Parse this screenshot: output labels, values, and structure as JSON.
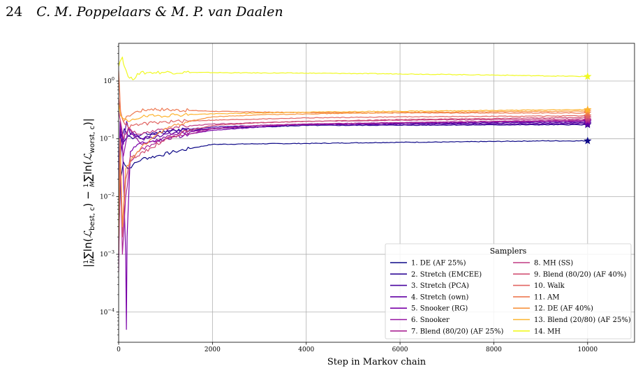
{
  "header": {
    "page_number": "24",
    "authors": "C. M. Poppelaars & M. P. van Daalen"
  },
  "chart_data": {
    "type": "line",
    "xlabel": "Step in Markov chain",
    "ylabel": "|1/N ∑ln(ℒ_best,c) − 1/M ∑ln(ℒ_worst,c)|",
    "ylabel_parts": {
      "bar": "|",
      "frac1_num": "1",
      "frac1_den": "N",
      "sum1": "∑ln(",
      "L1": "ℒ",
      "sub1": "best, c",
      "mid": ") − ",
      "frac2_num": "1",
      "frac2_den": "M",
      "sum2": "∑ln(",
      "L2": "ℒ",
      "sub2": "worst, c",
      "end": ")|"
    },
    "xlim": [
      0,
      11000
    ],
    "ylim": [
      3e-05,
      4.5
    ],
    "yscale": "log",
    "grid": true,
    "x_ticks": [
      0,
      2000,
      4000,
      6000,
      8000,
      10000
    ],
    "x_tick_labels": [
      "0",
      "2000",
      "4000",
      "6000",
      "8000",
      "10000"
    ],
    "y_ticks": [
      0.0001,
      0.001,
      0.01,
      0.1,
      1
    ],
    "y_tick_labels": [
      {
        "base": "10",
        "exp": "−4"
      },
      {
        "base": "10",
        "exp": "−3"
      },
      {
        "base": "10",
        "exp": "−2"
      },
      {
        "base": "10",
        "exp": "−1"
      },
      {
        "base": "10",
        "exp": "0"
      }
    ],
    "marker": "star",
    "legend": {
      "title": "Samplers",
      "position": "lower-right",
      "columns": 2
    },
    "series": [
      {
        "name": "1. DE (AF 25%)",
        "color": "#0d0887",
        "final": 0.092,
        "x": [
          0,
          40,
          100,
          200,
          300,
          500,
          800,
          1200,
          1600,
          2000,
          3000,
          4000,
          5000,
          6000,
          7000,
          8000,
          9000,
          10000
        ],
        "y": [
          0.002,
          0.02,
          0.04,
          0.03,
          0.035,
          0.045,
          0.05,
          0.06,
          0.07,
          0.08,
          0.082,
          0.083,
          0.085,
          0.087,
          0.088,
          0.09,
          0.092,
          0.092
        ]
      },
      {
        "name": "2. Stretch (EMCEE)",
        "color": "#2b0594",
        "final": 0.175,
        "x": [
          0,
          50,
          120,
          180,
          300,
          500,
          800,
          1200,
          2000,
          3000,
          4000,
          6000,
          8000,
          10000
        ],
        "y": [
          0.001,
          0.08,
          0.15,
          0.12,
          0.1,
          0.12,
          0.13,
          0.14,
          0.15,
          0.16,
          0.17,
          0.172,
          0.174,
          0.175
        ]
      },
      {
        "name": "3. Stretch (PCA)",
        "color": "#48039f",
        "final": 0.19,
        "x": [
          0,
          50,
          120,
          200,
          300,
          500,
          800,
          1200,
          2000,
          3000,
          4000,
          6000,
          8000,
          10000
        ],
        "y": [
          0.003,
          0.12,
          0.09,
          0.11,
          0.13,
          0.1,
          0.12,
          0.14,
          0.16,
          0.17,
          0.18,
          0.185,
          0.188,
          0.19
        ]
      },
      {
        "name": "4. Stretch (own)",
        "color": "#6200a4",
        "final": 0.182,
        "x": [
          0,
          40,
          100,
          170,
          250,
          500,
          800,
          1200,
          2000,
          3000,
          4000,
          6000,
          8000,
          10000
        ],
        "y": [
          0.02,
          0.15,
          0.08,
          0.2,
          0.12,
          0.1,
          0.11,
          0.13,
          0.15,
          0.17,
          0.175,
          0.178,
          0.18,
          0.182
        ]
      },
      {
        "name": "5. Snooker (RG)",
        "color": "#7a02a8",
        "final": 0.2,
        "x": [
          0,
          30,
          80,
          150,
          165,
          180,
          250,
          400,
          700,
          1000,
          1500,
          2000,
          3000,
          4000,
          6000,
          8000,
          10000
        ],
        "y": [
          0.01,
          0.2,
          0.1,
          0.001,
          5e-05,
          0.002,
          0.06,
          0.08,
          0.09,
          0.1,
          0.12,
          0.14,
          0.16,
          0.18,
          0.19,
          0.195,
          0.2
        ]
      },
      {
        "name": "6. Snooker",
        "color": "#9512a1",
        "final": 0.205,
        "x": [
          0,
          40,
          100,
          200,
          300,
          500,
          800,
          1200,
          2000,
          3000,
          4000,
          6000,
          8000,
          10000
        ],
        "y": [
          0.005,
          0.1,
          0.05,
          0.15,
          0.12,
          0.08,
          0.09,
          0.12,
          0.15,
          0.17,
          0.18,
          0.19,
          0.2,
          0.205
        ]
      },
      {
        "name": "7. Blend (80/20) (AF 25%)",
        "color": "#ab2494",
        "final": 0.21,
        "x": [
          0,
          30,
          80,
          150,
          250,
          400,
          700,
          1000,
          1500,
          2000,
          3000,
          4000,
          6000,
          8000,
          10000
        ],
        "y": [
          0.0005,
          0.05,
          0.001,
          0.01,
          0.04,
          0.06,
          0.08,
          0.1,
          0.12,
          0.15,
          0.17,
          0.18,
          0.19,
          0.2,
          0.21
        ]
      },
      {
        "name": "8. MH (SS)",
        "color": "#c03a83",
        "final": 0.22,
        "x": [
          0,
          40,
          100,
          200,
          300,
          500,
          800,
          1200,
          2000,
          3000,
          4000,
          6000,
          8000,
          10000
        ],
        "y": [
          0.3,
          0.2,
          0.1,
          0.15,
          0.13,
          0.12,
          0.14,
          0.16,
          0.18,
          0.19,
          0.2,
          0.21,
          0.215,
          0.22
        ]
      },
      {
        "name": "9. Blend (80/20) (AF 40%)",
        "color": "#d14e72",
        "final": 0.235,
        "x": [
          0,
          30,
          80,
          150,
          250,
          400,
          700,
          1000,
          1500,
          2000,
          3000,
          4000,
          6000,
          8000,
          10000
        ],
        "y": [
          0.001,
          0.05,
          0.002,
          0.02,
          0.05,
          0.05,
          0.07,
          0.1,
          0.14,
          0.17,
          0.19,
          0.2,
          0.215,
          0.225,
          0.235
        ]
      },
      {
        "name": "10. Walk",
        "color": "#e16462",
        "final": 0.25,
        "x": [
          0,
          40,
          100,
          200,
          300,
          500,
          800,
          1200,
          2000,
          3000,
          4000,
          6000,
          8000,
          10000
        ],
        "y": [
          0.5,
          0.3,
          0.2,
          0.16,
          0.17,
          0.18,
          0.19,
          0.2,
          0.21,
          0.22,
          0.23,
          0.24,
          0.245,
          0.25
        ]
      },
      {
        "name": "11. AM",
        "color": "#ee7851",
        "final": 0.28,
        "x": [
          0,
          40,
          100,
          200,
          400,
          700,
          1000,
          1500,
          2000,
          3000,
          4000,
          6000,
          8000,
          10000
        ],
        "y": [
          1.5,
          0.3,
          0.2,
          0.25,
          0.3,
          0.33,
          0.32,
          0.31,
          0.3,
          0.29,
          0.285,
          0.28,
          0.28,
          0.28
        ]
      },
      {
        "name": "12. DE (AF 40%)",
        "color": "#f89540",
        "final": 0.3,
        "x": [
          0,
          30,
          80,
          150,
          250,
          400,
          700,
          1000,
          1500,
          2000,
          3000,
          4000,
          6000,
          8000,
          10000
        ],
        "y": [
          0.002,
          0.1,
          0.003,
          0.03,
          0.04,
          0.06,
          0.1,
          0.15,
          0.2,
          0.24,
          0.26,
          0.27,
          0.285,
          0.295,
          0.3
        ]
      },
      {
        "name": "13. Blend (20/80) (AF 25%)",
        "color": "#fdb42f",
        "final": 0.32,
        "x": [
          0,
          40,
          100,
          200,
          300,
          500,
          800,
          1200,
          2000,
          3000,
          4000,
          6000,
          8000,
          10000
        ],
        "y": [
          0.4,
          0.25,
          0.22,
          0.2,
          0.22,
          0.24,
          0.25,
          0.26,
          0.27,
          0.28,
          0.29,
          0.3,
          0.31,
          0.32
        ]
      },
      {
        "name": "14. MH",
        "color": "#f0f921",
        "final": 1.2,
        "x": [
          0,
          30,
          80,
          120,
          200,
          300,
          400,
          600,
          1000,
          2000,
          3000,
          4000,
          5000,
          6000,
          7000,
          8000,
          9000,
          10000
        ],
        "y": [
          1.8,
          2.2,
          2.6,
          1.8,
          1.2,
          1.05,
          1.35,
          1.4,
          1.42,
          1.4,
          1.38,
          1.37,
          1.35,
          1.33,
          1.3,
          1.27,
          1.23,
          1.2
        ]
      }
    ]
  }
}
